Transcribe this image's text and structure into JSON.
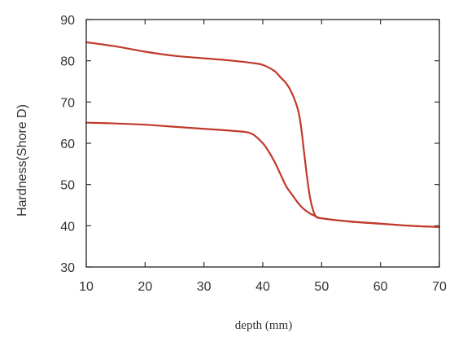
{
  "chart_data": {
    "type": "line",
    "title": "",
    "xlabel": "depth (mm)",
    "ylabel": "Hardness(Shore D)",
    "xlim": [
      10,
      70
    ],
    "ylim": [
      30,
      90
    ],
    "xticks": [
      10,
      20,
      30,
      40,
      50,
      60,
      70
    ],
    "yticks": [
      30,
      40,
      50,
      60,
      70,
      80,
      90
    ],
    "grid": false,
    "legend": "none",
    "series_color": "#c0392b",
    "series": [
      {
        "x": [
          10,
          15,
          20,
          25,
          30,
          35,
          38,
          40,
          42,
          43,
          44,
          45,
          46,
          46.5,
          47,
          47.5,
          48,
          48.5,
          49,
          50,
          55,
          60,
          65,
          70
        ],
        "values": [
          84.5,
          83.5,
          82.2,
          81.2,
          80.6,
          80.0,
          79.5,
          79.0,
          77.5,
          76.0,
          74.5,
          72.0,
          68.0,
          64.0,
          58.0,
          52.0,
          47.0,
          44.0,
          42.3,
          41.8,
          41.0,
          40.5,
          40.0,
          39.7
        ]
      },
      {
        "x": [
          10,
          15,
          20,
          25,
          30,
          35,
          38,
          40,
          41,
          42,
          43,
          44,
          45,
          46,
          47,
          48,
          49,
          50,
          55,
          60,
          65,
          70
        ],
        "values": [
          65.0,
          64.8,
          64.5,
          64.0,
          63.5,
          63.0,
          62.4,
          60.0,
          58.0,
          55.5,
          52.5,
          49.5,
          47.5,
          45.5,
          44.0,
          43.0,
          42.3,
          41.8,
          41.0,
          40.5,
          40.0,
          39.7
        ]
      }
    ]
  }
}
